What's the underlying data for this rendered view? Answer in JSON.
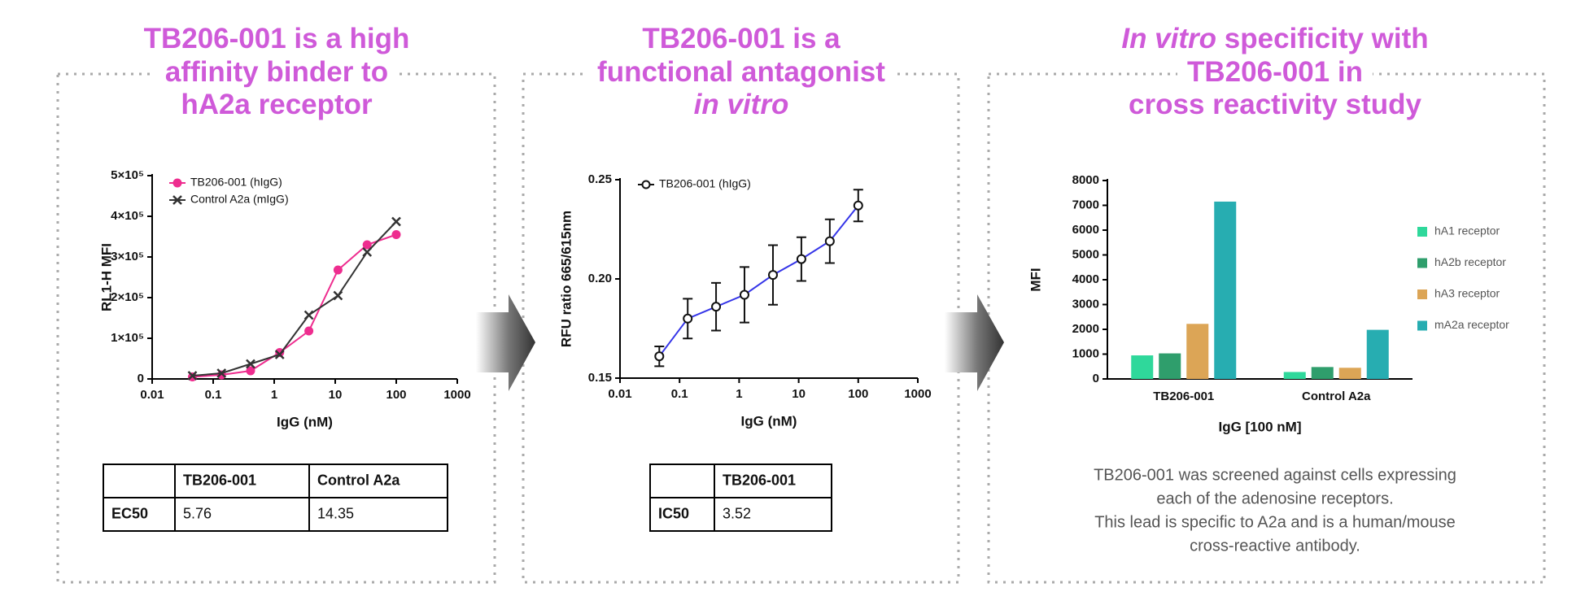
{
  "panels": [
    {
      "heading": [
        [
          {
            "text": "TB206-001 is a high"
          }
        ],
        [
          {
            "text": "affinity binder to"
          }
        ],
        [
          {
            "text": "hA2a receptor"
          }
        ]
      ],
      "table": {
        "header": [
          "TB206-001",
          "Control A2a"
        ],
        "rows": [
          [
            "EC50",
            "5.76",
            "14.35"
          ]
        ]
      }
    },
    {
      "heading": [
        [
          {
            "text": "TB206-001 is a"
          }
        ],
        [
          {
            "text": "functional antagonist"
          }
        ],
        [
          {
            "text": "in vitro",
            "italic": true
          }
        ]
      ],
      "table": {
        "header": [
          "TB206-001"
        ],
        "rows": [
          [
            "IC50",
            "3.52"
          ]
        ]
      }
    },
    {
      "heading": [
        [
          {
            "text": "In vitro",
            "italic": true
          },
          {
            "text": " specificity with"
          }
        ],
        [
          {
            "text": "TB206-001 in"
          }
        ],
        [
          {
            "text": "cross reactivity study"
          }
        ]
      ],
      "caption": [
        "TB206-001 was screened against cells expressing",
        "each of the adenosine receptors.",
        "This lead is specific to A2a and is a human/mouse",
        "cross-reactive antibody."
      ]
    }
  ],
  "chart_data": [
    {
      "type": "line",
      "log_x": true,
      "x_label": "IgG (nM)",
      "y_label": "RL1-H MFI",
      "x": [
        0.0457,
        0.137,
        0.41,
        1.23,
        3.7,
        11.1,
        33.3,
        100
      ],
      "series": [
        {
          "name": "TB206-001 (hIgG)",
          "color": "#ee2d8f",
          "marker": "circle",
          "values": [
            5000,
            10000,
            20000,
            65000,
            118000,
            268000,
            330000,
            355000
          ]
        },
        {
          "name": "Control A2a (mIgG)",
          "color": "#333333",
          "marker": "x",
          "values": [
            8000,
            14000,
            37000,
            60000,
            157000,
            205000,
            312000,
            387000
          ]
        }
      ],
      "xlim": [
        0.01,
        1000
      ],
      "xticks": [
        0.01,
        0.1,
        1,
        10,
        100,
        1000
      ],
      "ylim": [
        0,
        500000
      ],
      "yticks": [
        0,
        {
          "value": 100000,
          "label": "1×10⁵"
        },
        {
          "value": 200000,
          "label": "2×10⁵"
        },
        {
          "value": 300000,
          "label": "3×10⁵"
        },
        {
          "value": 400000,
          "label": "4×10⁵"
        },
        {
          "value": 500000,
          "label": "5×10⁵"
        }
      ]
    },
    {
      "type": "line",
      "log_x": true,
      "x_label": "IgG (nM)",
      "y_label": "RFU ratio 665/615nm",
      "x": [
        0.0457,
        0.137,
        0.41,
        1.23,
        3.7,
        11.1,
        33.3,
        100
      ],
      "series": [
        {
          "name": "TB206-001 (hIgG)",
          "color": "#111111",
          "line_color": "#3535e8",
          "marker": "open-circle",
          "values": [
            0.161,
            0.18,
            0.186,
            0.192,
            0.202,
            0.21,
            0.219,
            0.237
          ],
          "errors": [
            0.005,
            0.01,
            0.012,
            0.014,
            0.015,
            0.011,
            0.011,
            0.008
          ]
        }
      ],
      "xlim": [
        0.01,
        1000
      ],
      "xticks": [
        0.01,
        0.1,
        1,
        10,
        100,
        1000
      ],
      "ylim": [
        0.15,
        0.25
      ],
      "yticks": [
        0.15,
        {
          "value": 0.2,
          "label": "0.20"
        },
        0.25
      ]
    },
    {
      "type": "bar",
      "x_label": "IgG [100 nM]",
      "y_label": "MFI",
      "categories": [
        "TB206-001",
        "Control A2a"
      ],
      "series": [
        {
          "name": "hA1 receptor",
          "color": "#2fd89b",
          "values": [
            950,
            280
          ]
        },
        {
          "name": "hA2b receptor",
          "color": "#2f9e6c",
          "values": [
            1030,
            480
          ]
        },
        {
          "name": "hA3 receptor",
          "color": "#dca556",
          "values": [
            2220,
            450
          ]
        },
        {
          "name": "mA2a receptor",
          "color": "#27adb1",
          "values": [
            7150,
            1980
          ]
        }
      ],
      "ylim": [
        0,
        8000
      ],
      "yticks": [
        0,
        1000,
        2000,
        3000,
        4000,
        5000,
        6000,
        7000,
        8000
      ]
    }
  ]
}
